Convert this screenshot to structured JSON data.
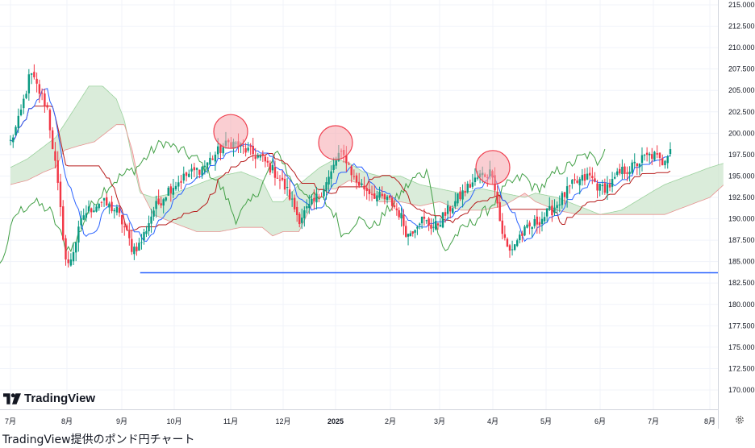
{
  "chart_data": {
    "type": "candlestick",
    "y_ticks": [
      "215.000",
      "212.500",
      "210.000",
      "207.500",
      "205.000",
      "202.500",
      "200.000",
      "197.500",
      "195.000",
      "192.500",
      "190.000",
      "187.500",
      "185.000",
      "182.500",
      "180.000",
      "177.500",
      "175.000",
      "172.500",
      "170.000"
    ],
    "ylim": [
      168.5,
      215.5
    ],
    "x_ticks": [
      {
        "label": "7月",
        "pos": 0
      },
      {
        "label": "8月",
        "pos": 1
      },
      {
        "label": "9月",
        "pos": 2
      },
      {
        "label": "10月",
        "pos": 3
      },
      {
        "label": "11月",
        "pos": 4
      },
      {
        "label": "12月",
        "pos": 5
      },
      {
        "label": "2025",
        "pos": 6,
        "bold": true
      },
      {
        "label": "2月",
        "pos": 7
      },
      {
        "label": "3月",
        "pos": 8
      },
      {
        "label": "4月",
        "pos": 9
      },
      {
        "label": "5月",
        "pos": 10
      },
      {
        "label": "6月",
        "pos": 11
      },
      {
        "label": "7月",
        "pos": 12
      },
      {
        "label": "8月",
        "pos": 13
      }
    ],
    "close_path": [
      [
        0,
        199
      ],
      [
        0.15,
        201.5
      ],
      [
        0.35,
        207
      ],
      [
        0.5,
        205
      ],
      [
        0.65,
        203
      ],
      [
        0.8,
        196
      ],
      [
        1.0,
        184
      ],
      [
        1.1,
        186
      ],
      [
        1.3,
        190.5
      ],
      [
        1.6,
        192
      ],
      [
        1.9,
        191
      ],
      [
        2.05,
        189
      ],
      [
        2.2,
        186.5
      ],
      [
        2.35,
        187
      ],
      [
        2.6,
        191
      ],
      [
        2.9,
        193.5
      ],
      [
        3.2,
        195
      ],
      [
        3.5,
        196
      ],
      [
        3.8,
        198
      ],
      [
        4.0,
        199
      ],
      [
        4.3,
        198
      ],
      [
        4.6,
        197
      ],
      [
        4.9,
        195
      ],
      [
        5.1,
        193
      ],
      [
        5.3,
        190
      ],
      [
        5.6,
        192
      ],
      [
        5.9,
        195
      ],
      [
        6.05,
        197.5
      ],
      [
        6.2,
        197
      ],
      [
        6.35,
        194.5
      ],
      [
        6.55,
        193.5
      ],
      [
        6.8,
        192.5
      ],
      [
        7.0,
        192
      ],
      [
        7.2,
        190.5
      ],
      [
        7.35,
        188
      ],
      [
        7.6,
        190
      ],
      [
        7.9,
        189
      ],
      [
        8.1,
        190.5
      ],
      [
        8.3,
        192
      ],
      [
        8.5,
        193.5
      ],
      [
        8.75,
        195
      ],
      [
        9.0,
        195.5
      ],
      [
        9.15,
        189
      ],
      [
        9.3,
        186
      ],
      [
        9.5,
        188
      ],
      [
        9.7,
        189
      ],
      [
        9.9,
        190
      ],
      [
        10.1,
        191
      ],
      [
        10.3,
        192.5
      ],
      [
        10.5,
        194
      ],
      [
        10.8,
        195
      ],
      [
        11.0,
        193.5
      ],
      [
        11.2,
        194
      ],
      [
        11.4,
        195.5
      ],
      [
        11.6,
        196
      ],
      [
        11.8,
        197
      ],
      [
        12.0,
        197.5
      ],
      [
        12.15,
        196.5
      ],
      [
        12.3,
        198.5
      ]
    ],
    "cloud": {
      "span_a": [
        [
          0,
          196
        ],
        [
          0.3,
          197
        ],
        [
          0.6,
          198.5
        ],
        [
          0.8,
          199.5
        ],
        [
          0.95,
          201
        ],
        [
          1.15,
          203
        ],
        [
          1.4,
          205.5
        ],
        [
          1.65,
          205.5
        ],
        [
          1.9,
          204
        ],
        [
          2.05,
          201.5
        ],
        [
          2.2,
          197
        ],
        [
          2.35,
          193
        ],
        [
          2.6,
          192.5
        ],
        [
          3.0,
          193
        ],
        [
          3.4,
          194
        ],
        [
          3.8,
          195
        ],
        [
          4.2,
          195.5
        ],
        [
          4.6,
          194.5
        ],
        [
          4.8,
          192
        ],
        [
          5.0,
          192
        ],
        [
          5.3,
          194
        ],
        [
          5.7,
          196
        ],
        [
          6.0,
          197
        ],
        [
          6.25,
          196.5
        ],
        [
          6.5,
          195.5
        ],
        [
          6.8,
          195
        ],
        [
          7.2,
          195
        ],
        [
          7.6,
          194
        ],
        [
          8.0,
          193.5
        ],
        [
          8.4,
          193
        ],
        [
          8.8,
          193.5
        ],
        [
          9.2,
          193
        ],
        [
          9.6,
          192.5
        ],
        [
          9.8,
          193
        ],
        [
          10.2,
          192.5
        ],
        [
          10.6,
          191.5
        ],
        [
          11.0,
          190.5
        ],
        [
          11.4,
          191
        ],
        [
          11.8,
          192.5
        ],
        [
          12.2,
          194
        ],
        [
          12.6,
          195
        ],
        [
          13.0,
          196
        ],
        [
          13.25,
          196.5
        ]
      ],
      "span_b": [
        [
          0,
          194
        ],
        [
          0.3,
          194.5
        ],
        [
          0.6,
          195.5
        ],
        [
          0.8,
          196
        ],
        [
          0.95,
          198
        ],
        [
          1.2,
          198.5
        ],
        [
          1.5,
          199
        ],
        [
          1.9,
          201
        ],
        [
          2.05,
          201
        ],
        [
          2.2,
          198
        ],
        [
          2.35,
          193.5
        ],
        [
          2.6,
          190.5
        ],
        [
          3.0,
          189.5
        ],
        [
          3.4,
          188.5
        ],
        [
          3.8,
          188.5
        ],
        [
          4.2,
          189
        ],
        [
          4.6,
          189
        ],
        [
          4.8,
          188
        ],
        [
          5.0,
          188.5
        ],
        [
          5.3,
          188.5
        ],
        [
          5.7,
          193.5
        ],
        [
          6.0,
          193.5
        ],
        [
          6.25,
          194.5
        ],
        [
          6.5,
          194
        ],
        [
          6.8,
          192
        ],
        [
          7.2,
          192
        ],
        [
          7.6,
          191.5
        ],
        [
          8.0,
          192
        ],
        [
          8.4,
          191
        ],
        [
          8.8,
          191
        ],
        [
          9.2,
          191.5
        ],
        [
          9.6,
          193
        ],
        [
          9.8,
          192
        ],
        [
          10.2,
          191
        ],
        [
          10.6,
          190.5
        ],
        [
          11.0,
          190.5
        ],
        [
          11.4,
          190.5
        ],
        [
          11.8,
          190.5
        ],
        [
          12.2,
          190.5
        ],
        [
          12.6,
          191.5
        ],
        [
          13.0,
          192.5
        ],
        [
          13.25,
          194
        ]
      ]
    },
    "support_line": {
      "value": 183.7,
      "x_start": 2.35,
      "x_end": 13.6,
      "color": "#2962ff"
    },
    "highlight_circles": [
      {
        "x": 4.0,
        "y": 200.2
      },
      {
        "x": 6.0,
        "y": 198.9
      },
      {
        "x": 9.0,
        "y": 196.0
      }
    ],
    "colors": {
      "up": "#089981",
      "down": "#f23645",
      "tenkan": "#2962ff",
      "kijun": "#b71c1c",
      "chikou": "#43a047",
      "cloud_bull": "#d6ead6",
      "cloud_bear": "#f6d2d2",
      "circle_fill": "#f6a6ad",
      "circle_stroke": "#f04050"
    }
  },
  "brand": {
    "name": "TradingView"
  },
  "caption": "TradingView提供のポンド円チャート"
}
